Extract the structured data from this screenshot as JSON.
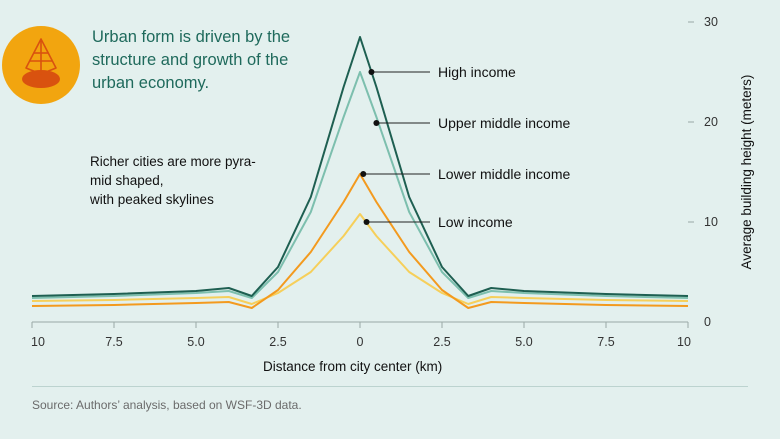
{
  "headline": "Urban form is driven by the structure and growth of the urban economy.",
  "subtext_lines": [
    "Richer cities are more pyra-",
    "mid shaped,",
    "with peaked skylines"
  ],
  "source": "Source: Authors’ analysis, based on WSF-3D data.",
  "colors": {
    "background": "#e3f0ee",
    "high_income": "#1e5f51",
    "upper_middle_income": "#7dbfae",
    "lower_middle_income": "#f39a1e",
    "low_income": "#f6cf5a",
    "headline": "#1f6a5c",
    "icon_circle": "#f2a50f"
  },
  "icon": "pyramid-building-icon",
  "chart_data": {
    "type": "line",
    "xlabel": "Distance from city center (km)",
    "ylabel": "Average building height (meters)",
    "x_ticks": [
      "10",
      "7.5",
      "5.0",
      "2.5",
      "0",
      "2.5",
      "5.0",
      "7.5",
      "10"
    ],
    "y_ticks": [
      "0",
      "10",
      "20",
      "30"
    ],
    "xlim": [
      -10,
      10
    ],
    "ylim": [
      0,
      30
    ],
    "grid": false,
    "series": [
      {
        "name": "High income",
        "color": "#1e5f51",
        "x": [
          -10,
          -7.5,
          -5,
          -4,
          -3.3,
          -2.5,
          -1.5,
          -0.5,
          0,
          0.5,
          1.5,
          2.5,
          3.3,
          4,
          5,
          7.5,
          10
        ],
        "y": [
          2.6,
          2.8,
          3.1,
          3.4,
          2.6,
          5.5,
          12.5,
          23.5,
          28.5,
          23.5,
          12.5,
          5.5,
          2.6,
          3.4,
          3.1,
          2.8,
          2.6
        ]
      },
      {
        "name": "Upper middle income",
        "color": "#7dbfae",
        "x": [
          -10,
          -7.5,
          -5,
          -4,
          -3.3,
          -2.5,
          -1.5,
          -0.5,
          0,
          0.5,
          1.5,
          2.5,
          3.3,
          4,
          5,
          7.5,
          10
        ],
        "y": [
          2.4,
          2.6,
          2.9,
          3.1,
          2.4,
          5.0,
          11.0,
          20.5,
          25.0,
          20.5,
          11.0,
          5.0,
          2.4,
          3.1,
          2.9,
          2.6,
          2.4
        ]
      },
      {
        "name": "Lower middle income",
        "color": "#f39a1e",
        "x": [
          -10,
          -7.5,
          -5,
          -4,
          -3.3,
          -2.5,
          -1.5,
          -0.5,
          0,
          0.5,
          1.5,
          2.5,
          3.3,
          4,
          5,
          7.5,
          10
        ],
        "y": [
          1.6,
          1.7,
          1.9,
          2.0,
          1.4,
          3.2,
          7.0,
          12.0,
          14.8,
          12.0,
          7.0,
          3.2,
          1.4,
          2.0,
          1.9,
          1.7,
          1.6
        ]
      },
      {
        "name": "Low income",
        "color": "#f6cf5a",
        "x": [
          -10,
          -7.5,
          -5,
          -4,
          -3.3,
          -2.5,
          -1.5,
          -0.5,
          0,
          0.5,
          1.5,
          2.5,
          3.3,
          4,
          5,
          7.5,
          10
        ],
        "y": [
          2.1,
          2.2,
          2.4,
          2.5,
          1.8,
          2.9,
          5.0,
          8.6,
          10.8,
          8.6,
          5.0,
          2.9,
          1.8,
          2.5,
          2.4,
          2.2,
          2.1
        ]
      }
    ],
    "annotations": [
      {
        "series": "High income",
        "label": "High income",
        "x": 0.35,
        "y": 25.0
      },
      {
        "series": "Upper middle income",
        "label": "Upper middle income",
        "x": 0.5,
        "y": 19.9
      },
      {
        "series": "Lower middle income",
        "label": "Lower middle income",
        "x": 0.1,
        "y": 14.8
      },
      {
        "series": "Low income",
        "label": "Low income",
        "x": 0.2,
        "y": 10.0
      }
    ]
  }
}
